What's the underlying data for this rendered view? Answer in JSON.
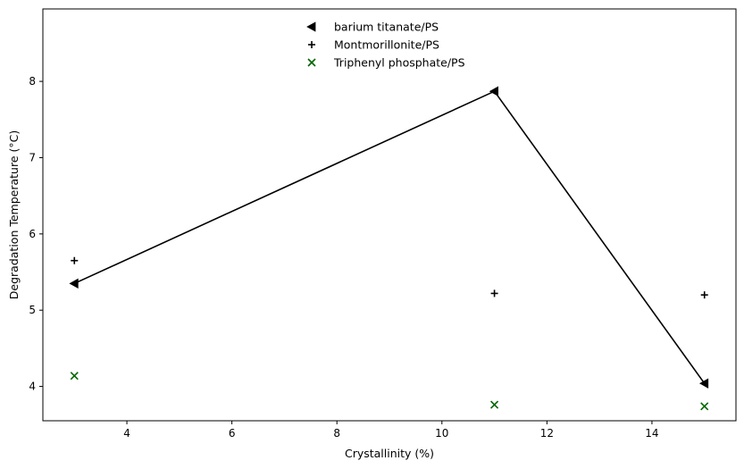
{
  "chart_data": {
    "type": "scatter",
    "title": "",
    "xlabel": "Crystallinity (%)",
    "ylabel": "Degradation Temperature (°C)",
    "xlim": [
      2.4,
      15.6
    ],
    "ylim": [
      3.55,
      8.95
    ],
    "xticks": [
      4,
      6,
      8,
      10,
      12,
      14
    ],
    "yticks": [
      4,
      5,
      6,
      7,
      8
    ],
    "grid": false,
    "legend_position": "upper center",
    "series": [
      {
        "name": "barium titanate/PS",
        "marker": "triangle-left",
        "color": "#000000",
        "connected": true,
        "x": [
          3,
          11,
          15
        ],
        "y": [
          5.35,
          7.87,
          4.04
        ]
      },
      {
        "name": "Montmorillonite/PS",
        "marker": "plus",
        "color": "#000000",
        "connected": false,
        "x": [
          3,
          11,
          15
        ],
        "y": [
          5.65,
          5.22,
          5.2
        ]
      },
      {
        "name": "Triphenyl phosphate/PS",
        "marker": "x",
        "color": "#006400",
        "connected": false,
        "x": [
          3,
          11,
          15
        ],
        "y": [
          4.14,
          3.76,
          3.74
        ]
      }
    ]
  }
}
